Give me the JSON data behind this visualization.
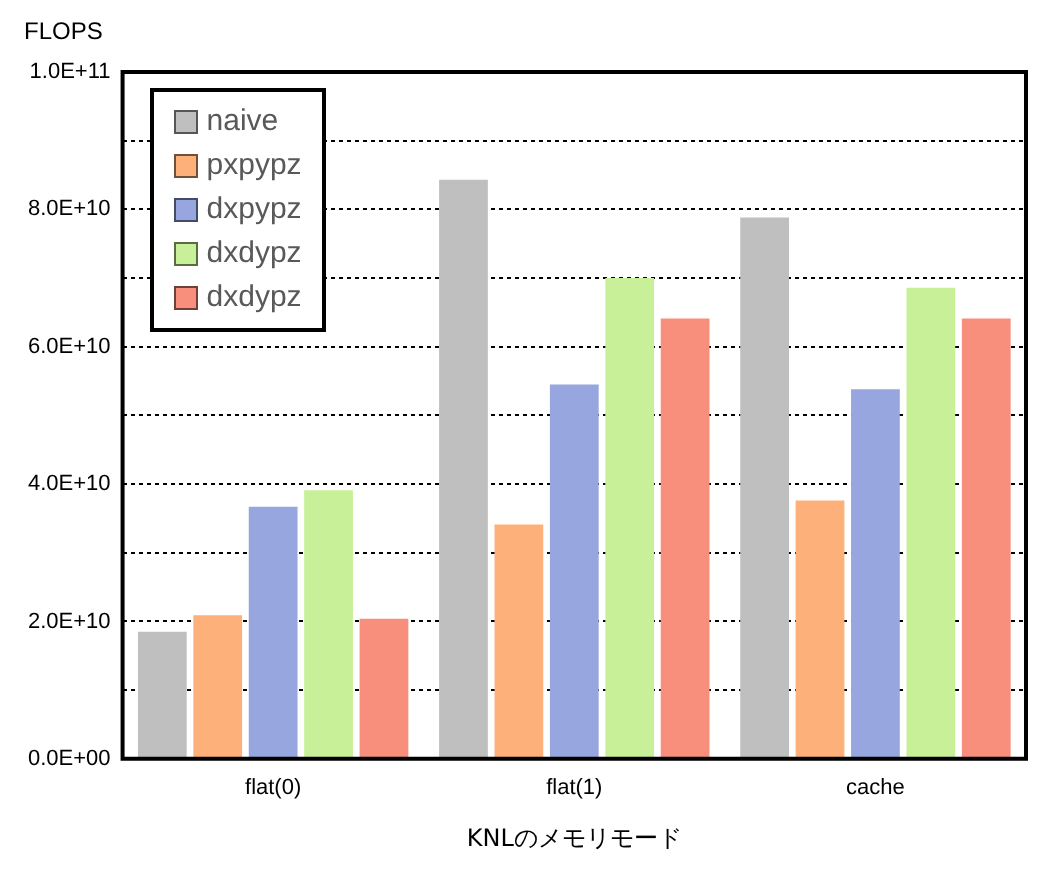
{
  "chart_data": {
    "type": "bar",
    "ylabel": "FLOPS",
    "xlabel": "KNLのメモリモード",
    "categories": [
      "flat(0)",
      "flat(1)",
      "cache"
    ],
    "series": [
      {
        "name": "naive",
        "color": "#bfbfbf",
        "values": [
          18500000000,
          84300000000,
          78800000000
        ]
      },
      {
        "name": "pxpypz",
        "color": "#fdb07a",
        "values": [
          20900000000,
          34100000000,
          37600000000
        ]
      },
      {
        "name": "dxpypz",
        "color": "#97a6de",
        "values": [
          36700000000,
          54500000000,
          53800000000
        ]
      },
      {
        "name": "dxdypz",
        "color": "#c8f098",
        "values": [
          39100000000,
          70000000000,
          68600000000
        ]
      },
      {
        "name": "dxdypz",
        "color": "#f78f7c",
        "values": [
          20400000000,
          64100000000,
          64100000000
        ]
      }
    ],
    "ylim": [
      0,
      100000000000
    ],
    "yticks": [
      {
        "value": 0,
        "label": "0.0E+00"
      },
      {
        "value": 10000000000,
        "label": null
      },
      {
        "value": 20000000000,
        "label": "2.0E+10"
      },
      {
        "value": 30000000000,
        "label": null
      },
      {
        "value": 40000000000,
        "label": "4.0E+10"
      },
      {
        "value": 50000000000,
        "label": null
      },
      {
        "value": 60000000000,
        "label": "6.0E+10"
      },
      {
        "value": 70000000000,
        "label": null
      },
      {
        "value": 80000000000,
        "label": "8.0E+10"
      },
      {
        "value": 90000000000,
        "label": null
      },
      {
        "value": 100000000000,
        "label": "1.0E+11"
      }
    ],
    "grid": "y",
    "legend": "top left"
  }
}
